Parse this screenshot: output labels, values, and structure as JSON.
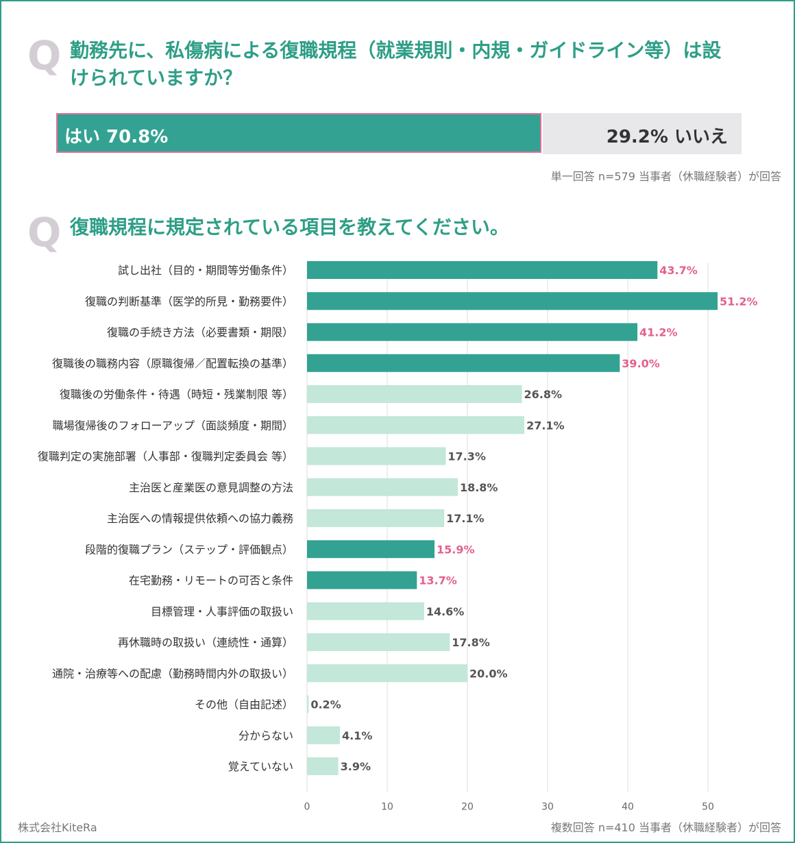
{
  "q1": {
    "mark": "Q",
    "title_line1": "勤務先に、私傷病による復職規程（就業規則・内規・ガイドライン等）は設",
    "title_line2": "けられていますか？",
    "yes_label": "はい 70.8%",
    "no_label": "29.2% いいえ",
    "yes": 70.8,
    "no": 29.2,
    "note": "単一回答 n=579 当事者（休職経験者）が回答"
  },
  "q2": {
    "mark": "Q",
    "title": "復職規程に規定されている項目を教えてください。",
    "note": "複数回答 n=410 当事者（休職経験者）が回答"
  },
  "company": "株式会社KiteRa",
  "colors": {
    "accent": "#2e9e86",
    "highlight_bar": "#33a292",
    "normal_bar": "#c3e7d8",
    "highlight_label": "#e3608c",
    "normal_label": "#555555"
  },
  "chart_data": {
    "type": "bar",
    "orientation": "horizontal",
    "xlim": [
      0,
      60
    ],
    "xticks": [
      0,
      10,
      20,
      30,
      40,
      50
    ],
    "grid": true,
    "categories": [
      "試し出社（目的・期間等労働条件）",
      "復職の判断基準（医学的所見・勤務要件）",
      "復職の手続き方法（必要書類・期限）",
      "復職後の職務内容（原職復帰／配置転換の基準）",
      "復職後の労働条件・待遇（時短・残業制限 等）",
      "職場復帰後のフォローアップ（面談頻度・期間）",
      "復職判定の実施部署（人事部・復職判定委員会 等）",
      "主治医と産業医の意見調整の方法",
      "主治医への情報提供依頼への協力義務",
      "段階的復職プラン（ステップ・評価観点）",
      "在宅勤務・リモートの可否と条件",
      "目標管理・人事評価の取扱い",
      "再休職時の取扱い（連続性・通算）",
      "通院・治療等への配慮（勤務時間内外の取扱い）",
      "その他（自由記述）",
      "分からない",
      "覚えていない"
    ],
    "values": [
      43.7,
      51.2,
      41.2,
      39.0,
      26.8,
      27.1,
      17.3,
      18.8,
      17.1,
      15.9,
      13.7,
      14.6,
      17.8,
      20.0,
      0.2,
      4.1,
      3.9
    ],
    "labels": [
      "43.7%",
      "51.2%",
      "41.2%",
      "39.0%",
      "26.8%",
      "27.1%",
      "17.3%",
      "18.8%",
      "17.1%",
      "15.9%",
      "13.7%",
      "14.6%",
      "17.8%",
      "20.0%",
      "0.2%",
      "4.1%",
      "3.9%"
    ],
    "highlighted": [
      true,
      true,
      true,
      true,
      false,
      false,
      false,
      false,
      false,
      true,
      true,
      false,
      false,
      false,
      false,
      false,
      false
    ]
  }
}
